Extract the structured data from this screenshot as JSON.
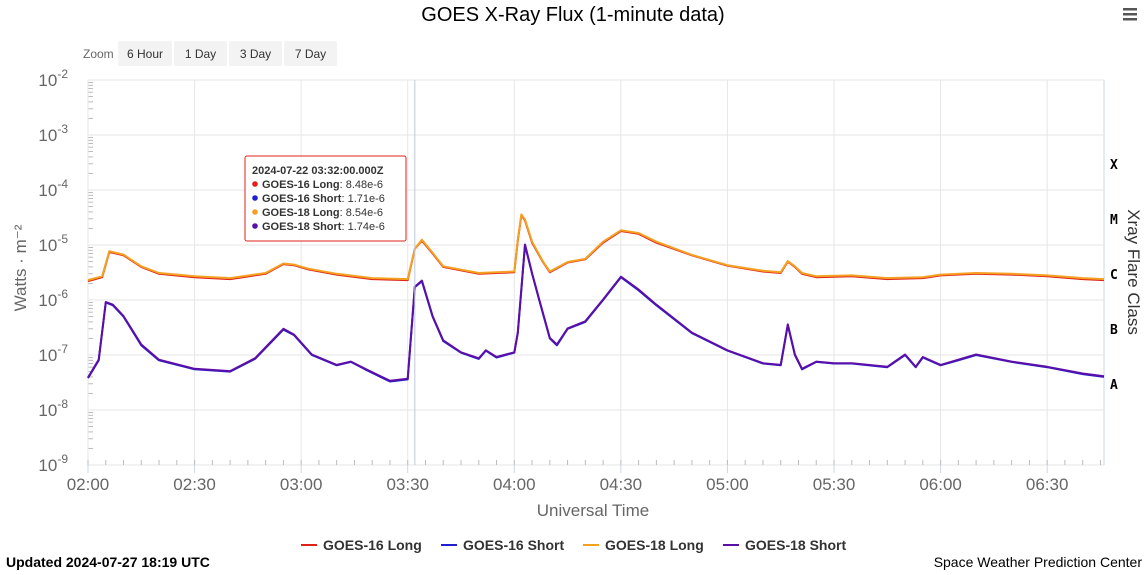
{
  "chart_data": {
    "type": "line",
    "title": "GOES X-Ray Flux (1-minute data)",
    "xlabel": "Universal Time",
    "ylabel": "Watts · m⁻²",
    "y2label": "Xray Flare Class",
    "yscale": "log",
    "ylim": [
      1e-09,
      0.01
    ],
    "y_ticks": [
      {
        "base": "10",
        "exp": "-2"
      },
      {
        "base": "10",
        "exp": "-3"
      },
      {
        "base": "10",
        "exp": "-4"
      },
      {
        "base": "10",
        "exp": "-5"
      },
      {
        "base": "10",
        "exp": "-6"
      },
      {
        "base": "10",
        "exp": "-7"
      },
      {
        "base": "10",
        "exp": "-8"
      },
      {
        "base": "10",
        "exp": "-9"
      }
    ],
    "flare_classes": [
      {
        "label": "X",
        "value": 0.0001
      },
      {
        "label": "M",
        "value": 1e-05
      },
      {
        "label": "C",
        "value": 1e-06
      },
      {
        "label": "B",
        "value": 1e-07
      },
      {
        "label": "A",
        "value": 1e-08
      }
    ],
    "xlim": [
      "2024-07-22 02:00",
      "2024-07-22 06:46"
    ],
    "x_ticks": [
      "02:00",
      "02:30",
      "03:00",
      "03:30",
      "04:00",
      "04:30",
      "05:00",
      "05:30",
      "06:00",
      "06:30"
    ],
    "crosshair_x": "2024-07-22 03:32",
    "grid": true,
    "legend_position": "bottom",
    "series": [
      {
        "name": "GOES-16 Long",
        "color": "#e0201b",
        "x": [
          "02:00",
          "02:04",
          "02:06",
          "02:10",
          "02:15",
          "02:20",
          "02:30",
          "02:40",
          "02:50",
          "02:55",
          "02:58",
          "03:02",
          "03:10",
          "03:20",
          "03:30",
          "03:32",
          "03:34",
          "03:37",
          "03:40",
          "03:50",
          "03:55",
          "04:00",
          "04:01",
          "04:02",
          "04:03",
          "04:05",
          "04:08",
          "04:10",
          "04:15",
          "04:20",
          "04:25",
          "04:30",
          "04:35",
          "04:40",
          "04:50",
          "05:00",
          "05:10",
          "05:15",
          "05:17",
          "05:19",
          "05:21",
          "05:25",
          "05:35",
          "05:45",
          "05:55",
          "06:00",
          "06:10",
          "06:20",
          "06:30",
          "06:40",
          "06:46"
        ],
        "y": [
          2.2e-06,
          2.6e-06,
          7.5e-06,
          6.5e-06,
          4e-06,
          3e-06,
          2.6e-06,
          2.4e-06,
          3e-06,
          4.5e-06,
          4.3e-06,
          3.6e-06,
          2.9e-06,
          2.4e-06,
          2.3e-06,
          8.48e-06,
          1.2e-05,
          7e-06,
          4e-06,
          3e-06,
          3.1e-06,
          3.2e-06,
          1.2e-05,
          3.5e-05,
          2.8e-05,
          1.1e-05,
          5e-06,
          3.2e-06,
          4.8e-06,
          5.5e-06,
          1.1e-05,
          1.8e-05,
          1.6e-05,
          1.1e-05,
          6.5e-06,
          4.2e-06,
          3.3e-06,
          3.1e-06,
          5e-06,
          4e-06,
          3e-06,
          2.6e-06,
          2.7e-06,
          2.4e-06,
          2.5e-06,
          2.8e-06,
          3e-06,
          2.9e-06,
          2.7e-06,
          2.4e-06,
          2.3e-06
        ]
      },
      {
        "name": "GOES-16 Short",
        "color": "#1f1fcf",
        "x": [
          "02:00",
          "02:03",
          "02:05",
          "02:07",
          "02:10",
          "02:15",
          "02:20",
          "02:30",
          "02:40",
          "02:47",
          "02:55",
          "02:58",
          "03:03",
          "03:10",
          "03:14",
          "03:18",
          "03:25",
          "03:30",
          "03:32",
          "03:34",
          "03:37",
          "03:40",
          "03:45",
          "03:50",
          "03:52",
          "03:55",
          "04:00",
          "04:01",
          "04:03",
          "04:05",
          "04:07",
          "04:10",
          "04:12",
          "04:15",
          "04:20",
          "04:25",
          "04:30",
          "04:35",
          "04:40",
          "04:50",
          "05:00",
          "05:10",
          "05:15",
          "05:17",
          "05:19",
          "05:21",
          "05:25",
          "05:30",
          "05:35",
          "05:45",
          "05:50",
          "05:53",
          "05:55",
          "06:00",
          "06:05",
          "06:10",
          "06:20",
          "06:30",
          "06:40",
          "06:46"
        ],
        "y": [
          3.8e-08,
          8e-08,
          9e-07,
          8e-07,
          5e-07,
          1.5e-07,
          8e-08,
          5.5e-08,
          5e-08,
          8.5e-08,
          2.9e-07,
          2.3e-07,
          1e-07,
          6.5e-08,
          7.5e-08,
          5.5e-08,
          3.3e-08,
          3.6e-08,
          1.71e-06,
          2.2e-06,
          5e-07,
          1.8e-07,
          1.1e-07,
          8.5e-08,
          1.2e-07,
          9e-08,
          1.1e-07,
          2.5e-07,
          1e-05,
          3e-06,
          1e-06,
          2e-07,
          1.5e-07,
          3e-07,
          4e-07,
          1e-06,
          2.6e-06,
          1.5e-06,
          8e-07,
          2.5e-07,
          1.2e-07,
          7e-08,
          6.5e-08,
          3.5e-07,
          1e-07,
          5.5e-08,
          7.5e-08,
          7e-08,
          7e-08,
          6e-08,
          1e-07,
          6e-08,
          9e-08,
          6.5e-08,
          8e-08,
          1e-07,
          7.5e-08,
          6e-08,
          4.5e-08,
          4e-08
        ]
      },
      {
        "name": "GOES-18 Long",
        "color": "#f4a020",
        "x": [
          "02:00",
          "02:04",
          "02:06",
          "02:10",
          "02:15",
          "02:20",
          "02:30",
          "02:40",
          "02:50",
          "02:55",
          "02:58",
          "03:02",
          "03:10",
          "03:20",
          "03:30",
          "03:32",
          "03:34",
          "03:37",
          "03:40",
          "03:50",
          "03:55",
          "04:00",
          "04:01",
          "04:02",
          "04:03",
          "04:05",
          "04:08",
          "04:10",
          "04:15",
          "04:20",
          "04:25",
          "04:30",
          "04:35",
          "04:40",
          "04:50",
          "05:00",
          "05:10",
          "05:15",
          "05:17",
          "05:19",
          "05:21",
          "05:25",
          "05:35",
          "05:45",
          "05:55",
          "06:00",
          "06:10",
          "06:20",
          "06:30",
          "06:40",
          "06:46"
        ],
        "y": [
          2.3e-06,
          2.7e-06,
          7.7e-06,
          6.7e-06,
          4.1e-06,
          3.1e-06,
          2.7e-06,
          2.5e-06,
          3.1e-06,
          4.6e-06,
          4.4e-06,
          3.7e-06,
          3e-06,
          2.5e-06,
          2.4e-06,
          8.54e-06,
          1.25e-05,
          7.2e-06,
          4.1e-06,
          3.1e-06,
          3.2e-06,
          3.3e-06,
          1.25e-05,
          3.6e-05,
          2.9e-05,
          1.15e-05,
          5.1e-06,
          3.3e-06,
          4.9e-06,
          5.6e-06,
          1.15e-05,
          1.85e-05,
          1.65e-05,
          1.15e-05,
          6.6e-06,
          4.3e-06,
          3.4e-06,
          3.2e-06,
          5.1e-06,
          4.1e-06,
          3.1e-06,
          2.7e-06,
          2.8e-06,
          2.5e-06,
          2.6e-06,
          2.9e-06,
          3.1e-06,
          3e-06,
          2.8e-06,
          2.5e-06,
          2.4e-06
        ]
      },
      {
        "name": "GOES-18 Short",
        "color": "#5a0fa8",
        "x": [
          "02:00",
          "02:03",
          "02:05",
          "02:07",
          "02:10",
          "02:15",
          "02:20",
          "02:30",
          "02:40",
          "02:47",
          "02:55",
          "02:58",
          "03:03",
          "03:10",
          "03:14",
          "03:18",
          "03:25",
          "03:30",
          "03:32",
          "03:34",
          "03:37",
          "03:40",
          "03:45",
          "03:50",
          "03:52",
          "03:55",
          "04:00",
          "04:01",
          "04:03",
          "04:05",
          "04:07",
          "04:10",
          "04:12",
          "04:15",
          "04:20",
          "04:25",
          "04:30",
          "04:35",
          "04:40",
          "04:50",
          "05:00",
          "05:10",
          "05:15",
          "05:17",
          "05:19",
          "05:21",
          "05:25",
          "05:30",
          "05:35",
          "05:45",
          "05:50",
          "05:53",
          "05:55",
          "06:00",
          "06:05",
          "06:10",
          "06:20",
          "06:30",
          "06:40",
          "06:46"
        ],
        "y": [
          3.9e-08,
          8.2e-08,
          9.2e-07,
          8.2e-07,
          5.1e-07,
          1.55e-07,
          8.2e-08,
          5.6e-08,
          5.1e-08,
          8.7e-08,
          3e-07,
          2.35e-07,
          1.02e-07,
          6.6e-08,
          7.6e-08,
          5.6e-08,
          3.4e-08,
          3.7e-08,
          1.74e-06,
          2.25e-06,
          5.1e-07,
          1.85e-07,
          1.12e-07,
          8.7e-08,
          1.22e-07,
          9.2e-08,
          1.12e-07,
          2.55e-07,
          1.02e-05,
          3.05e-06,
          1.02e-06,
          2.05e-07,
          1.55e-07,
          3.05e-07,
          4.1e-07,
          1.02e-06,
          2.65e-06,
          1.55e-06,
          8.2e-07,
          2.55e-07,
          1.22e-07,
          7.1e-08,
          6.6e-08,
          3.6e-07,
          1.02e-07,
          5.6e-08,
          7.6e-08,
          7.1e-08,
          7.1e-08,
          6.1e-08,
          1.02e-07,
          6.1e-08,
          9.2e-08,
          6.6e-08,
          8.2e-08,
          1.02e-07,
          7.6e-08,
          6.1e-08,
          4.6e-08,
          4.1e-08
        ]
      }
    ]
  },
  "zoom": {
    "label": "Zoom",
    "buttons": [
      "6 Hour",
      "1 Day",
      "3 Day",
      "7 Day"
    ]
  },
  "tooltip": {
    "header": "2024-07-22 03:32:00.000Z",
    "rows": [
      {
        "name": "GOES-16 Long",
        "value": "8.48e-6",
        "color": "#e0201b"
      },
      {
        "name": "GOES-16 Short",
        "value": "1.71e-6",
        "color": "#1f1fcf"
      },
      {
        "name": "GOES-18 Long",
        "value": "8.54e-6",
        "color": "#f4a020"
      },
      {
        "name": "GOES-18 Short",
        "value": "1.74e-6",
        "color": "#5a0fa8"
      }
    ]
  },
  "menu_icon": "hamburger-menu-icon",
  "footer": {
    "updated": "Updated 2024-07-27 18:19 UTC",
    "credit": "Space Weather Prediction Center"
  }
}
